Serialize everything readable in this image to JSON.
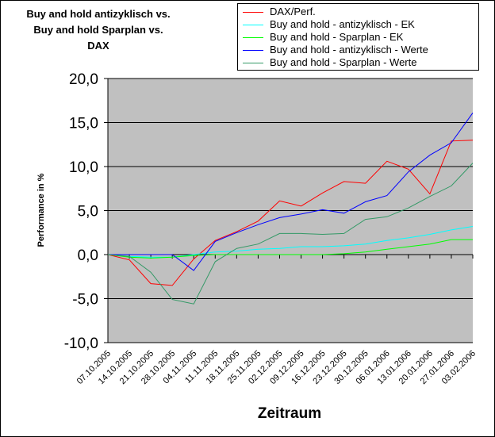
{
  "chart_data": {
    "type": "line",
    "title_lines": [
      "Buy and hold antizyklisch vs.",
      "Buy and hold Sparplan vs.",
      "DAX"
    ],
    "xlabel": "Zeitraum",
    "ylabel": "Performance in %",
    "ylim": [
      -10,
      20
    ],
    "y_tick_labels": [
      "20,0",
      "15,0",
      "10,0",
      "5,0",
      "0,0",
      "-5,0",
      "-10,0"
    ],
    "y_tick_values": [
      20,
      15,
      10,
      5,
      0,
      -5,
      -10
    ],
    "grid": true,
    "legend_position": "top-right",
    "plot_background": "#c0c0c0",
    "categories": [
      "07.10.2005",
      "14.10.2005",
      "21.10.2005",
      "28.10.2005",
      "04.11.2005",
      "11.11.2005",
      "18.11.2005",
      "25.11.2005",
      "02.12.2005",
      "09.12.2005",
      "16.12.2005",
      "23.12.2005",
      "30.12.2005",
      "06.01.2006",
      "13.01.2006",
      "20.01.2006",
      "27.01.2006",
      "03.02.2006"
    ],
    "series": [
      {
        "name": "DAX/Perf.",
        "color": "#ff0000",
        "values": [
          0,
          -0.6,
          -3.3,
          -3.5,
          -0.5,
          1.6,
          2.6,
          3.8,
          6.1,
          5.5,
          7.0,
          8.3,
          8.1,
          10.6,
          9.7,
          6.9,
          12.9,
          13.0
        ]
      },
      {
        "name": "Buy and hold - antizyklisch - EK",
        "color": "#00ffff",
        "values": [
          0,
          -0.2,
          -0.3,
          -0.3,
          0.0,
          0.3,
          0.4,
          0.6,
          0.7,
          0.9,
          0.9,
          1.0,
          1.2,
          1.6,
          1.9,
          2.3,
          2.8,
          3.2
        ]
      },
      {
        "name": "Buy and hold - Sparplan - EK",
        "color": "#00ff00",
        "values": [
          0,
          -0.3,
          -0.4,
          -0.3,
          -0.1,
          0.0,
          0.0,
          0.0,
          0.0,
          0.0,
          0.0,
          0.1,
          0.3,
          0.6,
          0.9,
          1.2,
          1.7,
          1.7
        ]
      },
      {
        "name": "Buy and hold - antizyklisch - Werte",
        "color": "#0000ff",
        "values": [
          0,
          0.0,
          0.0,
          0.0,
          -1.8,
          1.5,
          2.5,
          3.4,
          4.2,
          4.6,
          5.1,
          4.7,
          6.0,
          6.7,
          9.4,
          11.3,
          12.7,
          16.1
        ]
      },
      {
        "name": "Buy and hold - Sparplan - Werte",
        "color": "#339966",
        "values": [
          0,
          -0.2,
          -2.0,
          -5.1,
          -5.6,
          -0.8,
          0.7,
          1.2,
          2.4,
          2.4,
          2.3,
          2.4,
          4.0,
          4.3,
          5.3,
          6.6,
          7.8,
          10.4
        ]
      }
    ]
  }
}
